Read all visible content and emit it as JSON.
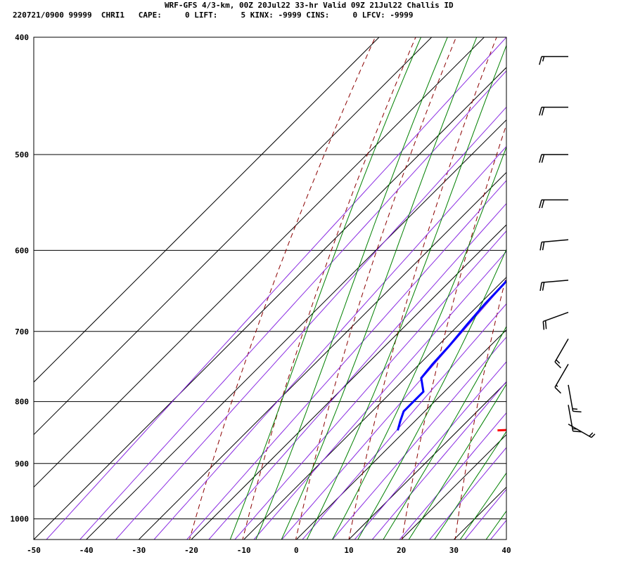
{
  "header": {
    "title": "WRF-GFS 4/3-km, 00Z 20Jul22 33-hr Valid 09Z 21Jul22 Challis ID",
    "stats": "220721/0900 99999  CHRI1   CAPE:     0 LIFT:     5 KINX: -9999 CINS:     0 LFCV: -9999"
  },
  "chart_data": {
    "type": "skew-t log-p sounding",
    "y_axis": {
      "scale": "log pressure (hPa)",
      "range": [
        1040,
        400
      ],
      "ticks": [
        "400",
        "500",
        "600",
        "700",
        "800",
        "900",
        "1000"
      ]
    },
    "x_axis": {
      "scale": "temperature (°C), skewed",
      "range": [
        -50,
        40
      ],
      "ticks": [
        "-50",
        "-40",
        "-30",
        "-20",
        "-10",
        "0",
        "10",
        "20",
        "30",
        "40"
      ]
    },
    "grid": true,
    "series": [
      {
        "color": "#ff0000",
        "points": [
          [
            845,
            17.5
          ],
          [
            844,
            21.0
          ],
          [
            835,
            20.7
          ],
          [
            815,
            20.5
          ],
          [
            803,
            20.0
          ],
          [
            780,
            18.6
          ],
          [
            760,
            17.3
          ],
          [
            740,
            16.3
          ],
          [
            720,
            15.2
          ],
          [
            700,
            13.5
          ],
          [
            680,
            12.2
          ],
          [
            650,
            10.3
          ],
          [
            620,
            8.0
          ],
          [
            590,
            5.5
          ],
          [
            560,
            3.3
          ],
          [
            530,
            1.0
          ],
          [
            500,
            -1.2
          ],
          [
            470,
            -3.8
          ],
          [
            440,
            -7.0
          ],
          [
            410,
            -10.2
          ]
        ]
      },
      {
        "color": "#0000ff",
        "points": [
          [
            845,
            -1.5
          ],
          [
            830,
            -2.8
          ],
          [
            815,
            -4.0
          ],
          [
            800,
            -4.0
          ],
          [
            785,
            -4.0
          ],
          [
            765,
            -7.0
          ],
          [
            745,
            -7.5
          ],
          [
            720,
            -7.8
          ],
          [
            690,
            -8.5
          ],
          [
            665,
            -9.0
          ],
          [
            640,
            -9.2
          ],
          [
            610,
            -9.8
          ],
          [
            585,
            -10.2
          ],
          [
            545,
            -13.0
          ],
          [
            520,
            -19.0
          ],
          [
            500,
            -24.0
          ],
          [
            460,
            -33.0
          ],
          [
            440,
            -36.0
          ],
          [
            410,
            -46.0
          ]
        ]
      }
    ],
    "background_lines": [
      {
        "kind": "isotherm",
        "color": "#000000",
        "values": [
          -80,
          -70,
          -60,
          -50,
          -40,
          -30,
          -20,
          -10,
          0,
          10,
          20,
          30,
          40
        ]
      },
      {
        "kind": "dry adiabat",
        "color": "#8b0000",
        "dash": true,
        "theta_K": [
          250,
          260,
          270,
          280,
          290,
          300,
          310,
          320,
          330,
          340,
          350,
          360
        ]
      },
      {
        "kind": "mixing ratio",
        "color": "#8a2be2",
        "values_g_per_kg": [
          0.05,
          0.1,
          0.2,
          0.4,
          0.7,
          1,
          1.5,
          2,
          3,
          4,
          6,
          8,
          10,
          14,
          20,
          30,
          40,
          60
        ]
      },
      {
        "kind": "moist adiabat",
        "color": "#008000",
        "theta_w_C": [
          -15,
          -10,
          -5,
          0,
          5,
          10,
          15,
          20,
          25,
          30,
          35,
          40,
          45
        ]
      }
    ],
    "wind_barbs": {
      "color": "#000000",
      "levels_hPa": [
        415,
        457,
        500,
        545,
        588,
        635,
        675,
        710,
        745,
        775,
        805,
        835
      ],
      "barb_angle_deg": [
        90,
        90,
        90,
        90,
        95,
        95,
        110,
        150,
        150,
        190,
        190,
        240
      ],
      "barb_counts": [
        [
          1,
          1,
          0
        ],
        [
          2,
          0,
          0
        ],
        [
          2,
          0,
          0
        ],
        [
          2,
          0,
          0
        ],
        [
          2,
          0,
          0
        ],
        [
          2,
          0,
          0
        ],
        [
          2,
          0,
          0
        ],
        [
          1,
          1,
          0
        ],
        [
          1,
          0,
          1
        ],
        [
          1,
          1,
          0
        ],
        [
          1,
          1,
          0
        ],
        [
          0,
          2,
          0
        ]
      ]
    }
  }
}
